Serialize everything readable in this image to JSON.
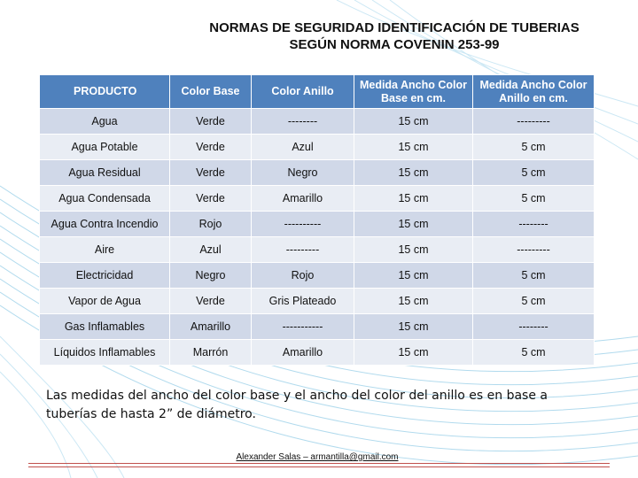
{
  "title": {
    "line1": "NORMAS DE SEGURIDAD IDENTIFICACIÓN DE TUBERIAS",
    "line2": "SEGÚN NORMA COVENIN 253-99"
  },
  "table": {
    "headers": [
      "PRODUCTO",
      "Color Base",
      "Color Anillo",
      "Medida Ancho Color Base en cm.",
      "Medida Ancho Color Anillo en cm."
    ],
    "rows": [
      [
        "Agua",
        "Verde",
        "--------",
        "15 cm",
        "---------"
      ],
      [
        "Agua Potable",
        "Verde",
        "Azul",
        "15 cm",
        "5 cm"
      ],
      [
        "Agua Residual",
        "Verde",
        "Negro",
        "15 cm",
        "5 cm"
      ],
      [
        "Agua Condensada",
        "Verde",
        "Amarillo",
        "15 cm",
        "5 cm"
      ],
      [
        "Agua Contra Incendio",
        "Rojo",
        "----------",
        "15 cm",
        "--------"
      ],
      [
        "Aire",
        "Azul",
        "---------",
        "15 cm",
        "---------"
      ],
      [
        "Electricidad",
        "Negro",
        "Rojo",
        "15 cm",
        "5 cm"
      ],
      [
        "Vapor de Agua",
        "Verde",
        "Gris Plateado",
        "15 cm",
        "5 cm"
      ],
      [
        "Gas Inflamables",
        "Amarillo",
        "-----------",
        "15 cm",
        "--------"
      ],
      [
        "Líquidos Inflamables",
        "Marrón",
        "Amarillo",
        "15 cm",
        "5 cm"
      ]
    ]
  },
  "note": "Las medidas del ancho del color base y el ancho del color del anillo es en base a tuberías de hasta 2” de diámetro.",
  "author": "Alexander Salas – armantilla@gmail.com",
  "colors": {
    "header": "#4f81bd",
    "row_dark": "#d0d8e8",
    "row_light": "#e9edf4",
    "rule": "#c0504d",
    "background_lines": "#9fd0e8"
  }
}
